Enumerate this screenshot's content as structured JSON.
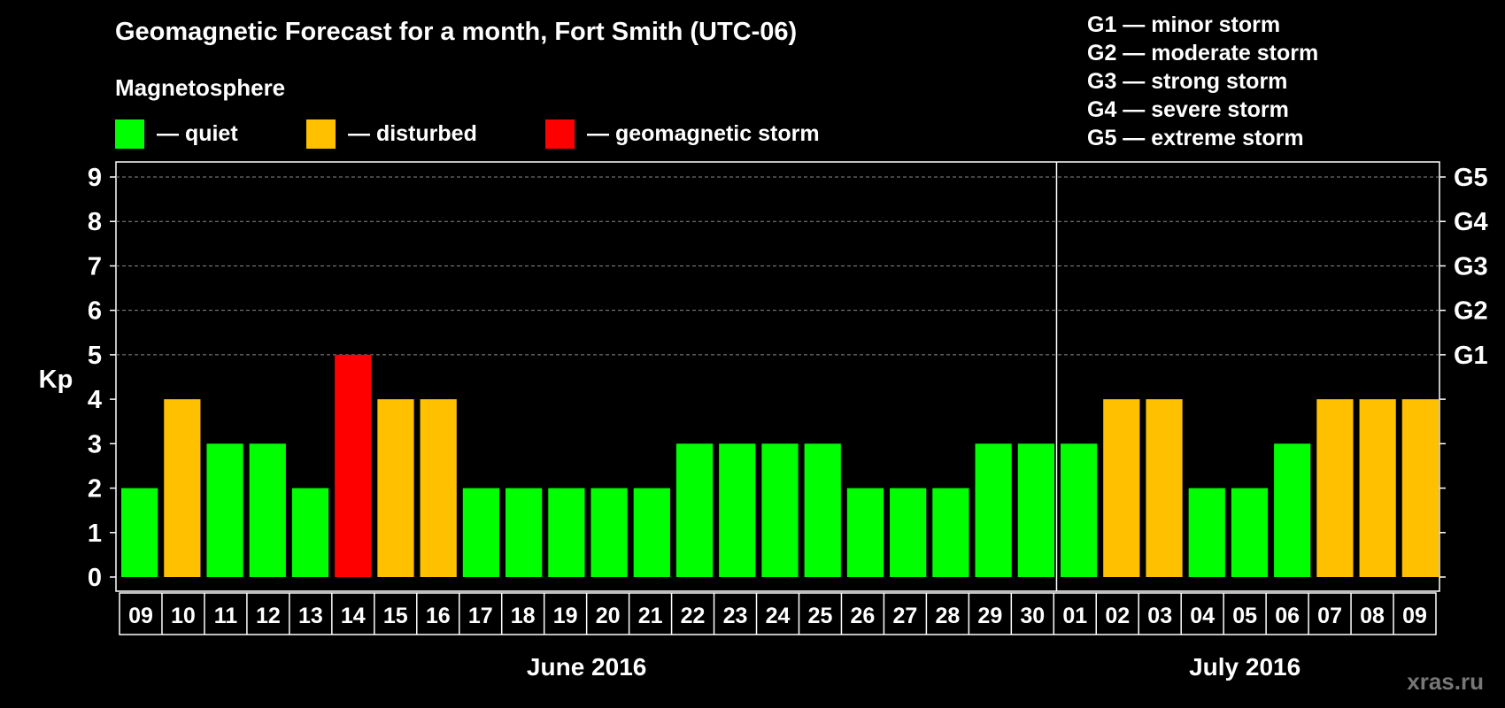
{
  "chart_data": {
    "type": "bar",
    "title": "Geomagnetic Forecast for a month, Fort Smith (UTC-06)",
    "subtitle": "Magnetosphere",
    "ylabel": "Kp",
    "ylim": [
      0,
      9
    ],
    "yticks": [
      "0",
      "1",
      "2",
      "3",
      "4",
      "5",
      "6",
      "7",
      "8",
      "9"
    ],
    "right_axis_labels": [
      {
        "kp": 5,
        "label": "G1"
      },
      {
        "kp": 6,
        "label": "G2"
      },
      {
        "kp": 7,
        "label": "G3"
      },
      {
        "kp": 8,
        "label": "G4"
      },
      {
        "kp": 9,
        "label": "G5"
      }
    ],
    "legend": [
      {
        "label": "— quiet",
        "color": "#00ff00"
      },
      {
        "label": "— disturbed",
        "color": "#ffc000"
      },
      {
        "label": "— geomagnetic storm",
        "color": "#ff0000"
      }
    ],
    "storm_scale": [
      "G1 — minor storm",
      "G2 — moderate storm",
      "G3 — strong storm",
      "G4 — severe storm",
      "G5 — extreme storm"
    ],
    "categories": [
      "09",
      "10",
      "11",
      "12",
      "13",
      "14",
      "15",
      "16",
      "17",
      "18",
      "19",
      "20",
      "21",
      "22",
      "23",
      "24",
      "25",
      "26",
      "27",
      "28",
      "29",
      "30",
      "01",
      "02",
      "03",
      "04",
      "05",
      "06",
      "07",
      "08",
      "09"
    ],
    "values": [
      2,
      4,
      3,
      3,
      2,
      5,
      4,
      4,
      2,
      2,
      2,
      2,
      2,
      3,
      3,
      3,
      3,
      2,
      2,
      2,
      3,
      3,
      3,
      4,
      4,
      2,
      2,
      3,
      4,
      4,
      4
    ],
    "months": [
      {
        "label": "June 2016",
        "start_index": 0,
        "end_index": 21
      },
      {
        "label": "July 2016",
        "start_index": 22,
        "end_index": 30
      }
    ],
    "colors": {
      "quiet": "#00ff00",
      "disturbed": "#ffc000",
      "storm": "#ff0000"
    },
    "grid": true
  },
  "watermark": "xras.ru"
}
